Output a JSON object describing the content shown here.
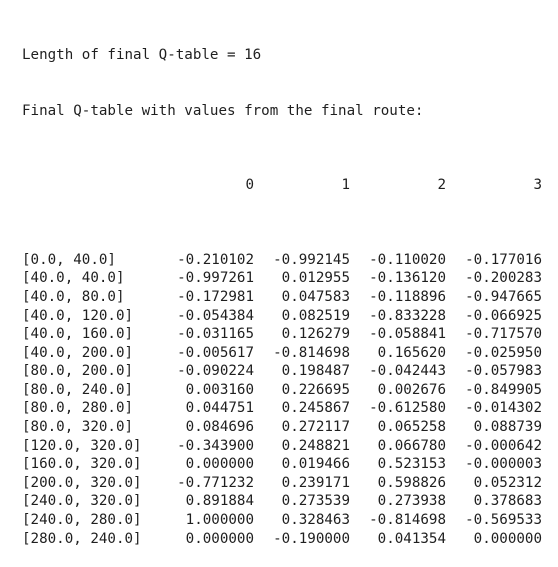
{
  "output": {
    "lines": [
      "Length of final Q-table = 16",
      "Final Q-table with values from the final route:"
    ],
    "columns": [
      "0",
      "1",
      "2",
      "3"
    ],
    "rows": [
      {
        "index": "[0.0, 40.0]",
        "values": [
          "-0.210102",
          "-0.992145",
          "-0.110020",
          "-0.177016"
        ]
      },
      {
        "index": "[40.0, 40.0]",
        "values": [
          "-0.997261",
          "0.012955",
          "-0.136120",
          "-0.200283"
        ]
      },
      {
        "index": "[40.0, 80.0]",
        "values": [
          "-0.172981",
          "0.047583",
          "-0.118896",
          "-0.947665"
        ]
      },
      {
        "index": "[40.0, 120.0]",
        "values": [
          "-0.054384",
          "0.082519",
          "-0.833228",
          "-0.066925"
        ]
      },
      {
        "index": "[40.0, 160.0]",
        "values": [
          "-0.031165",
          "0.126279",
          "-0.058841",
          "-0.717570"
        ]
      },
      {
        "index": "[40.0, 200.0]",
        "values": [
          "-0.005617",
          "-0.814698",
          "0.165620",
          "-0.025950"
        ]
      },
      {
        "index": "[80.0, 200.0]",
        "values": [
          "-0.090224",
          "0.198487",
          "-0.042443",
          "-0.057983"
        ]
      },
      {
        "index": "[80.0, 240.0]",
        "values": [
          "0.003160",
          "0.226695",
          "0.002676",
          "-0.849905"
        ]
      },
      {
        "index": "[80.0, 280.0]",
        "values": [
          "0.044751",
          "0.245867",
          "-0.612580",
          "-0.014302"
        ]
      },
      {
        "index": "[80.0, 320.0]",
        "values": [
          "0.084696",
          "0.272117",
          "0.065258",
          "0.088739"
        ]
      },
      {
        "index": "[120.0, 320.0]",
        "values": [
          "-0.343900",
          "0.248821",
          "0.066780",
          "-0.000642"
        ]
      },
      {
        "index": "[160.0, 320.0]",
        "values": [
          "0.000000",
          "0.019466",
          "0.523153",
          "-0.000003"
        ]
      },
      {
        "index": "[200.0, 320.0]",
        "values": [
          "-0.771232",
          "0.239171",
          "0.598826",
          "0.052312"
        ]
      },
      {
        "index": "[240.0, 320.0]",
        "values": [
          "0.891884",
          "0.273539",
          "0.273938",
          "0.378683"
        ]
      },
      {
        "index": "[240.0, 280.0]",
        "values": [
          "1.000000",
          "0.328463",
          "-0.814698",
          "-0.569533"
        ]
      },
      {
        "index": "[280.0, 240.0]",
        "values": [
          "0.000000",
          "-0.190000",
          "0.041354",
          "0.000000"
        ]
      }
    ]
  }
}
